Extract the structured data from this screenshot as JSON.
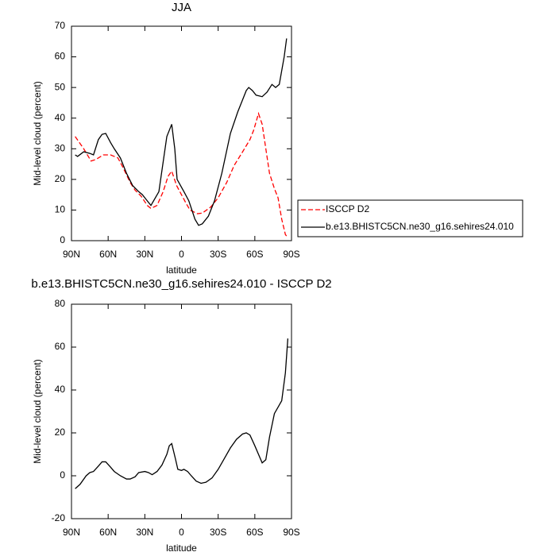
{
  "chart_data": [
    {
      "type": "line",
      "title": "JJA",
      "xlabel": "latitude",
      "ylabel": "Mid-level cloud (percent)",
      "xlim": [
        90,
        -90
      ],
      "xticks": [
        {
          "value": 90,
          "label": "90N"
        },
        {
          "value": 60,
          "label": "60N"
        },
        {
          "value": 30,
          "label": "30N"
        },
        0,
        {
          "value": -30,
          "label": "30S"
        },
        {
          "value": -60,
          "label": "60S"
        },
        {
          "value": -90,
          "label": "90S"
        }
      ],
      "ylim": [
        0,
        70
      ],
      "yticks": [
        0,
        10,
        20,
        30,
        40,
        50,
        60,
        70
      ],
      "legend": "right",
      "series": [
        {
          "name": "ISCCP D2",
          "color": "#ff0000",
          "line_style": "dashed",
          "x": [
            87,
            80,
            74,
            70,
            64,
            58,
            52,
            48,
            42,
            38,
            33,
            28,
            25,
            20,
            15,
            11,
            8,
            4,
            0,
            -4,
            -7,
            -13,
            -17,
            -24,
            -30,
            -37,
            -43,
            -50,
            -56,
            -59,
            -63,
            -66,
            -69,
            -72,
            -76,
            -79,
            -82,
            -85,
            -87
          ],
          "values": [
            34,
            30,
            26,
            26.5,
            28,
            28,
            27,
            24,
            19,
            16.5,
            14.5,
            11.5,
            10.5,
            11.5,
            16,
            21,
            22.7,
            18,
            15,
            12,
            10,
            8.8,
            9,
            11,
            14,
            19,
            24.5,
            29,
            33,
            36,
            41.5,
            38,
            30,
            22,
            17,
            14,
            7,
            2,
            1
          ]
        },
        {
          "name": "b.e13.BHISTC5CN.ne30_g16.sehires24.010",
          "color": "#000000",
          "line_style": "solid",
          "x": [
            87,
            85,
            80,
            75,
            72,
            68,
            65,
            62,
            58,
            55,
            50,
            45,
            40,
            35,
            32,
            28,
            25,
            18.5,
            12,
            8,
            5.5,
            3.6,
            -2,
            -6,
            -11,
            -14,
            -17,
            -22,
            -27,
            -33,
            -40,
            -46,
            -53,
            -55,
            -58,
            -61,
            -66,
            -70,
            -74,
            -77,
            -80,
            -84,
            -86
          ],
          "values": [
            28,
            27.5,
            29,
            28.5,
            28,
            33,
            34.7,
            35,
            32,
            30,
            27,
            22,
            18,
            16,
            15,
            13,
            11.5,
            16,
            34,
            38,
            30,
            20,
            16,
            13,
            7,
            5,
            5.5,
            8,
            13,
            22,
            35,
            42,
            49,
            50,
            49,
            47.5,
            47,
            48.5,
            51,
            50,
            51,
            60,
            66
          ]
        }
      ]
    },
    {
      "type": "line",
      "title": "b.e13.BHISTC5CN.ne30_g16.sehires24.010 - ISCCP D2",
      "xlabel": "latitude",
      "ylabel": "Mid-level cloud (percent)",
      "xlim": [
        90,
        -90
      ],
      "xticks": [
        {
          "value": 90,
          "label": "90N"
        },
        {
          "value": 60,
          "label": "60N"
        },
        {
          "value": 30,
          "label": "30N"
        },
        0,
        {
          "value": -30,
          "label": "30S"
        },
        {
          "value": -60,
          "label": "60S"
        },
        {
          "value": -90,
          "label": "90S"
        }
      ],
      "ylim": [
        -20,
        80
      ],
      "yticks": [
        -20,
        0,
        20,
        40,
        60,
        80
      ],
      "series": [
        {
          "color": "#000000",
          "line_style": "solid",
          "x": [
            87,
            83,
            78,
            75,
            72,
            68,
            65,
            62,
            58,
            55,
            50,
            45,
            42,
            38,
            35,
            30,
            27,
            24,
            20,
            16,
            12,
            10,
            8,
            5,
            3,
            0,
            -2,
            -5,
            -8,
            -12,
            -16,
            -20,
            -25,
            -30,
            -35,
            -40,
            -45,
            -50,
            -53,
            -56,
            -60,
            -63,
            -66,
            -69,
            -72,
            -76,
            -80,
            -82,
            -85,
            -87
          ],
          "values": [
            -6,
            -4,
            0,
            1.5,
            2,
            4.5,
            6.5,
            6.5,
            4,
            2,
            0,
            -1.5,
            -1.5,
            -0.5,
            1.5,
            2,
            1.5,
            0.5,
            2,
            5,
            10,
            14,
            15,
            8,
            3,
            2.5,
            3,
            2,
            0,
            -2.5,
            -3.5,
            -3,
            -1,
            3,
            8,
            13,
            17,
            19.5,
            20,
            19,
            14,
            10,
            6,
            7.5,
            18,
            29,
            33,
            35,
            48,
            64
          ]
        }
      ]
    }
  ]
}
